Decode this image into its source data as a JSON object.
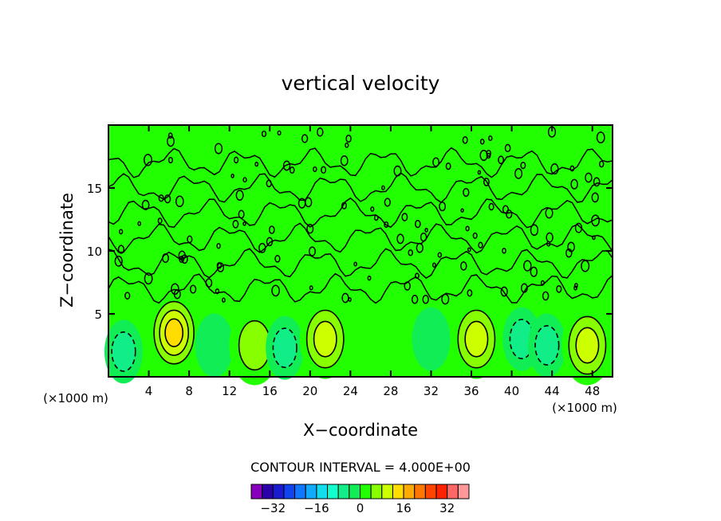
{
  "chart_data": {
    "type": "heatmap",
    "title": "vertical velocity",
    "xlabel": "X−coordinate",
    "ylabel": "Z−coordinate",
    "x_unit_left": "(×1000 m)",
    "x_unit_right": "(×1000 m)",
    "xlim": [
      0,
      50
    ],
    "ylim": [
      0,
      20
    ],
    "x_ticks": [
      4,
      8,
      12,
      16,
      20,
      24,
      28,
      32,
      36,
      40,
      44,
      48
    ],
    "x_tick_labels": [
      "4",
      "8",
      "12",
      "16",
      "20",
      "24",
      "28",
      "32",
      "36",
      "40",
      "44",
      "48"
    ],
    "y_ticks": [
      5,
      10,
      15
    ],
    "y_tick_labels": [
      "5",
      "10",
      "15"
    ],
    "contour_interval_label": "CONTOUR INTERVAL = 4.000E+00",
    "contour_interval": 4,
    "colorbar": {
      "colors": [
        "#8800bb",
        "#2a00aa",
        "#1a1ad0",
        "#1144ee",
        "#1177ff",
        "#11aaff",
        "#11ddee",
        "#11ffcc",
        "#11ee88",
        "#11ee55",
        "#22ff00",
        "#88ff00",
        "#ccff00",
        "#ffdd00",
        "#ffaa00",
        "#ff7700",
        "#ff4400",
        "#ff2200",
        "#ff6666",
        "#ff9999"
      ],
      "min": -40,
      "max": 40,
      "tick_values": [
        -32,
        -16,
        0,
        16,
        32
      ],
      "tick_labels": [
        "−32",
        "−16",
        "0",
        "16",
        "32"
      ]
    },
    "features": [
      {
        "kind": "updraft",
        "x": 6.5,
        "z": 3.5,
        "peak": 16
      },
      {
        "kind": "downdraft",
        "x": 1.5,
        "z": 2.0,
        "peak": -8
      },
      {
        "kind": "downdraft",
        "x": 10.5,
        "z": 2.5,
        "peak": -4
      },
      {
        "kind": "updraft",
        "x": 14.5,
        "z": 2.5,
        "peak": 8
      },
      {
        "kind": "downdraft",
        "x": 17.5,
        "z": 2.3,
        "peak": -8
      },
      {
        "kind": "updraft",
        "x": 21.5,
        "z": 3.0,
        "peak": 12
      },
      {
        "kind": "downdraft",
        "x": 32.0,
        "z": 3.0,
        "peak": -4
      },
      {
        "kind": "updraft",
        "x": 36.5,
        "z": 3.0,
        "peak": 12
      },
      {
        "kind": "downdraft",
        "x": 41.0,
        "z": 3.0,
        "peak": -8
      },
      {
        "kind": "downdraft",
        "x": 43.5,
        "z": 2.5,
        "peak": -8
      },
      {
        "kind": "updraft",
        "x": 47.5,
        "z": 2.5,
        "peak": 12
      }
    ]
  }
}
